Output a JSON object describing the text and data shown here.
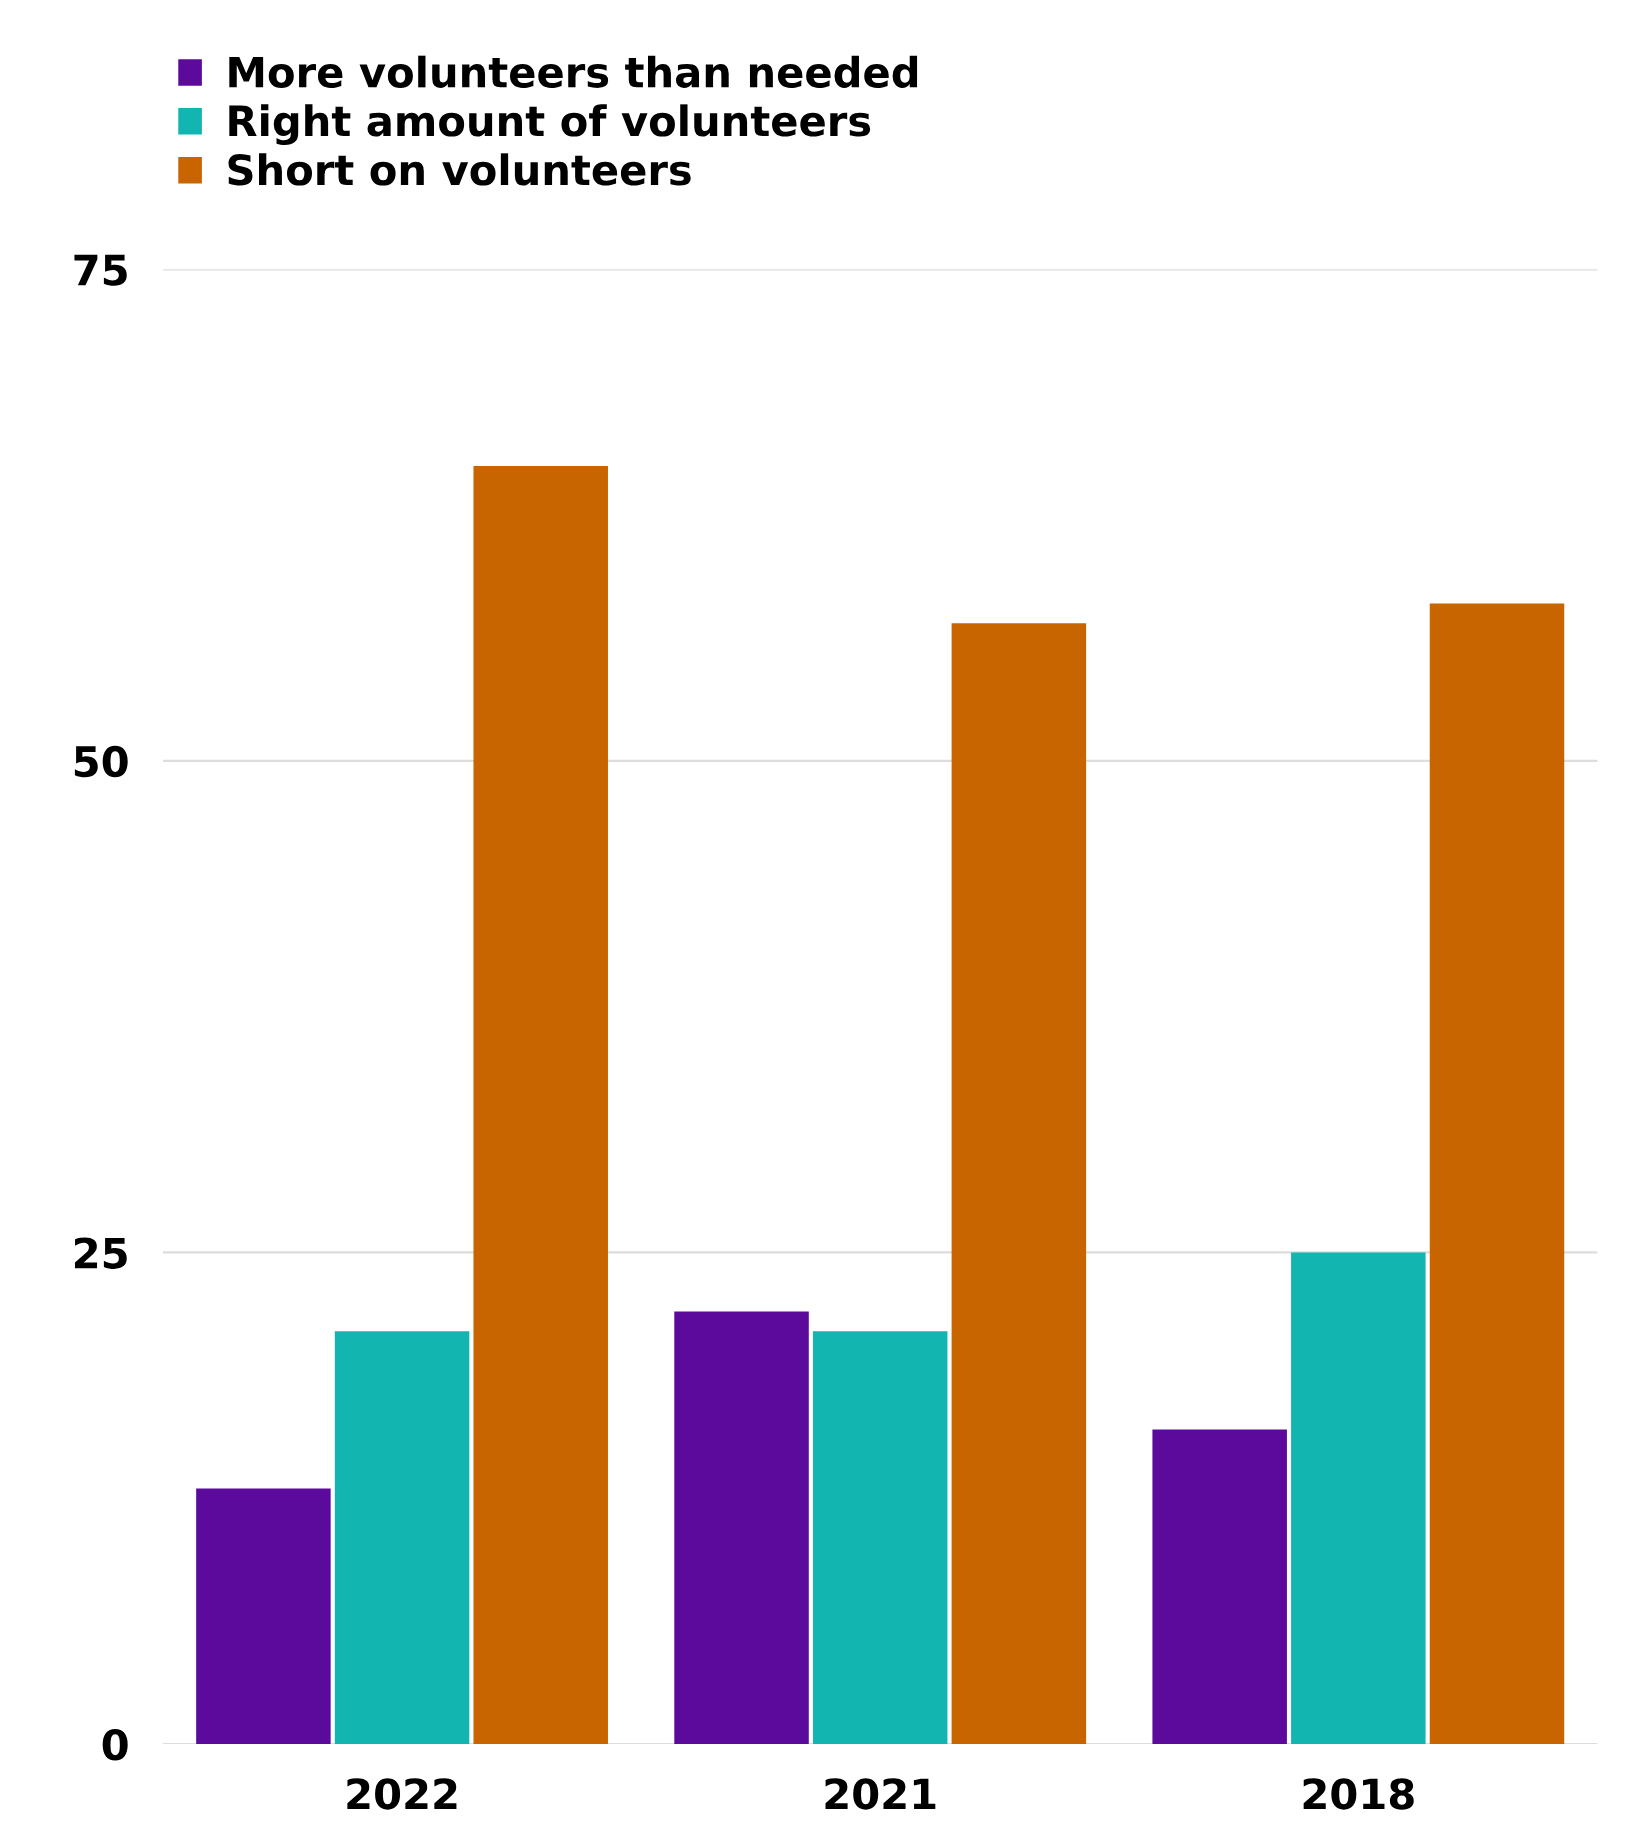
{
  "chart_data": {
    "type": "bar",
    "categories": [
      "2022",
      "2021",
      "2018"
    ],
    "series": [
      {
        "name": "More volunteers than needed",
        "color": "#5c0a9c",
        "values": [
          13,
          22,
          16
        ]
      },
      {
        "name": "Right amount of volunteers",
        "color": "#13b5b1",
        "values": [
          21,
          21,
          25
        ]
      },
      {
        "name": "Short on volunteers",
        "color": "#c96500",
        "values": [
          65,
          57,
          58
        ]
      }
    ],
    "ylim": [
      0,
      75
    ],
    "yticks": [
      0,
      25,
      50,
      75
    ],
    "grid": "y",
    "legend": "top left"
  }
}
